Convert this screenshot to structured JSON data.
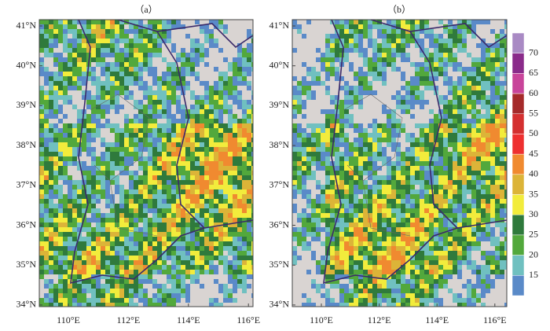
{
  "panels": [
    {
      "label": "（a）"
    },
    {
      "label": "（b）"
    }
  ],
  "lat_ticks": [
    "41°N",
    "40°N",
    "39°N",
    "38°N",
    "37°N",
    "36°N",
    "35°N",
    "34°N"
  ],
  "lon_ticks": [
    "110°E",
    "112°E",
    "114°E",
    "116°E"
  ],
  "colorbar": {
    "labels": [
      "70",
      "65",
      "60",
      "55",
      "50",
      "45",
      "40",
      "35",
      "30",
      "25",
      "20",
      "15"
    ],
    "colors": [
      "#a98ac4",
      "#8a2b8a",
      "#c8449a",
      "#a52a2a",
      "#d43030",
      "#ee3030",
      "#f08a30",
      "#dcb438",
      "#f2ec3c",
      "#2f7a3c",
      "#52a83c",
      "#70c0c0",
      "#5a8ac8"
    ]
  }
}
